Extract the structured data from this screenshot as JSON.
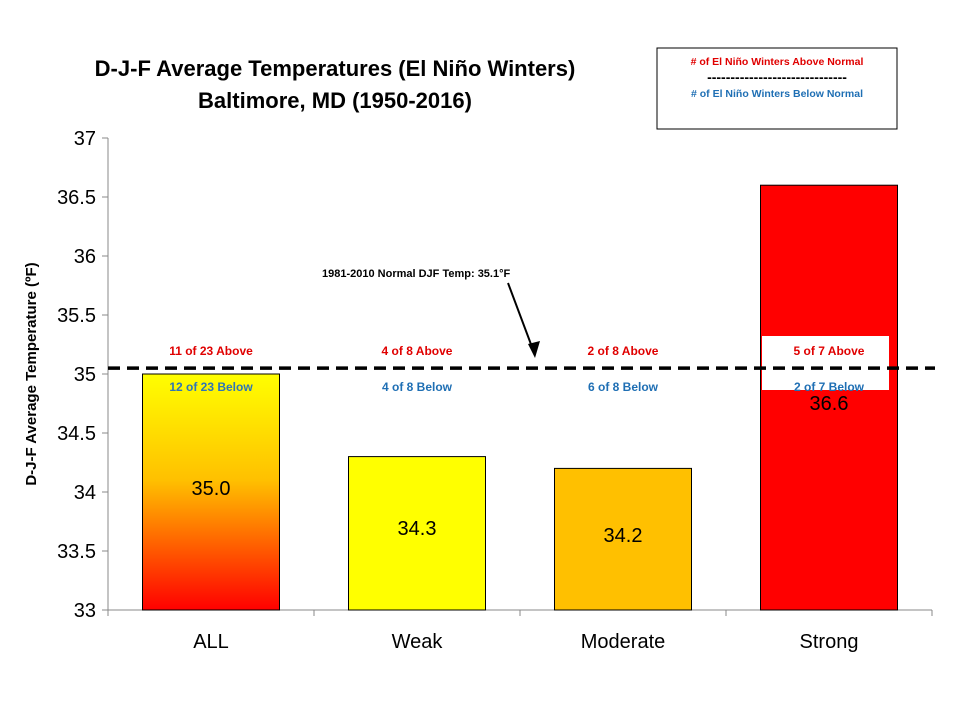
{
  "chart_data": {
    "type": "bar",
    "title": "D-J-F Average Temperatures (El Niño Winters)",
    "subtitle": "Baltimore, MD (1950-2016)",
    "ylabel": "D-J-F Average Temperature (ºF)",
    "xlabel": "",
    "ylim": [
      33,
      37
    ],
    "yticks": [
      "33",
      "33.5",
      "34",
      "34.5",
      "35",
      "35.5",
      "36",
      "36.5",
      "37"
    ],
    "categories": [
      "ALL",
      "Weak",
      "Moderate",
      "Strong"
    ],
    "values": [
      35.0,
      34.3,
      34.2,
      36.6
    ],
    "value_labels": [
      "35.0",
      "34.3",
      "34.2",
      "36.6"
    ],
    "bar_colors": [
      "#ff0000",
      "#ffff00",
      "#ffc000",
      "#ff0000"
    ],
    "bar_gradient_top": "#ffff00",
    "normal": {
      "value": 35.05,
      "label": "1981-2010  Normal DJF Temp: 35.1°F"
    },
    "above_labels": [
      "11 of 23 Above",
      "4 of 8 Above",
      "2 of 8 Above",
      "5 of 7 Above"
    ],
    "below_labels": [
      "12 of 23 Below",
      "4 of 8 Below",
      "6 of 8 Below",
      "2 of 7 Below"
    ],
    "legend": {
      "above": "# of El Niño Winters Above Normal",
      "divider": "------------------------------",
      "below": "# of El Niño Winters Below Normal",
      "position": "top-right"
    },
    "colors": {
      "above_text": "#e00000",
      "below_text": "#1f6fb4",
      "below_text_all": "#2e75b6"
    },
    "grid": false
  }
}
